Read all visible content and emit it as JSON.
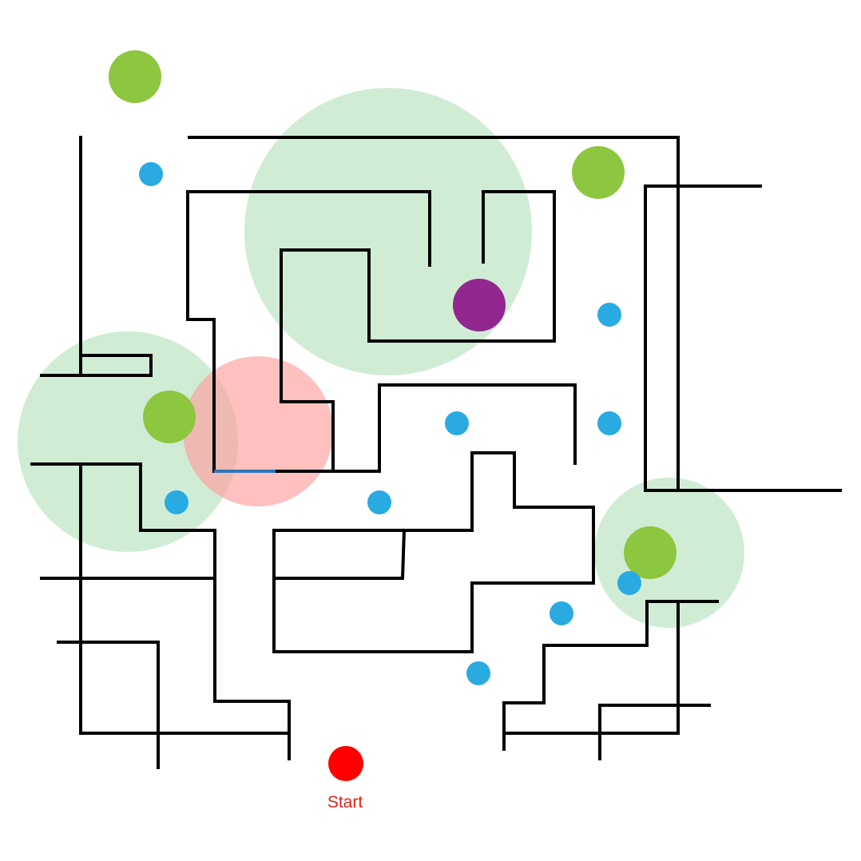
{
  "start": {
    "label": "Start"
  },
  "legend_semantics": {
    "start_marker": "start-dot",
    "goal_marker": "goal-dot",
    "collectible": "blue-coin",
    "bonus": "green-orb",
    "safe_zone": "green-zone",
    "danger_zone": "red-zone"
  },
  "colors": {
    "wall": "#000000",
    "start": "#ff0000",
    "start_label": "#e0201a",
    "goal": "#92278f",
    "coin": "#29abe2",
    "bonus": "#8dc63f",
    "safe_zone": "#b7e2bf",
    "danger_zone": "#ff9999",
    "door": "#2e75b6"
  }
}
